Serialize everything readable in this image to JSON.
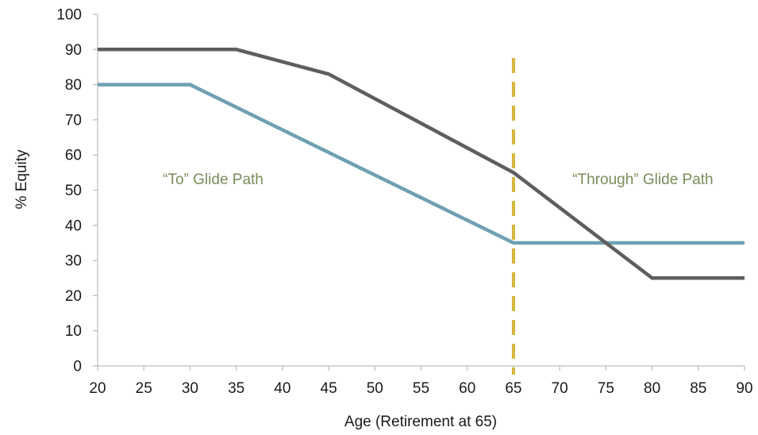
{
  "chart_data": {
    "type": "line",
    "title": "",
    "xlabel": "Age (Retirement at 65)",
    "ylabel": "% Equity",
    "xlim": [
      20,
      90
    ],
    "ylim": [
      0,
      100
    ],
    "x_ticks": [
      20,
      25,
      30,
      35,
      40,
      45,
      50,
      55,
      60,
      65,
      70,
      75,
      80,
      85,
      90
    ],
    "y_ticks": [
      0,
      10,
      20,
      30,
      40,
      50,
      60,
      70,
      80,
      90,
      100
    ],
    "grid": false,
    "legend": "none",
    "series": [
      {
        "color": "#5e5e5e",
        "x": [
          20,
          35,
          45,
          65,
          80,
          90
        ],
        "y": [
          90,
          90,
          83,
          55,
          25,
          25
        ]
      },
      {
        "color": "#6fa0b2",
        "x": [
          20,
          30,
          65,
          90
        ],
        "y": [
          80,
          80,
          35,
          35
        ]
      }
    ],
    "reference_lines": [
      {
        "orientation": "vertical",
        "x": 65,
        "style": "dashed",
        "color": "#d6b53c"
      }
    ],
    "annotations": [
      {
        "text": "“To” Glide Path",
        "x": 32.5,
        "y": 53,
        "color": "#7a8c5c"
      },
      {
        "text": "“Through” Glide Path",
        "x": 79,
        "y": 53,
        "color": "#7a8c5c"
      }
    ]
  }
}
